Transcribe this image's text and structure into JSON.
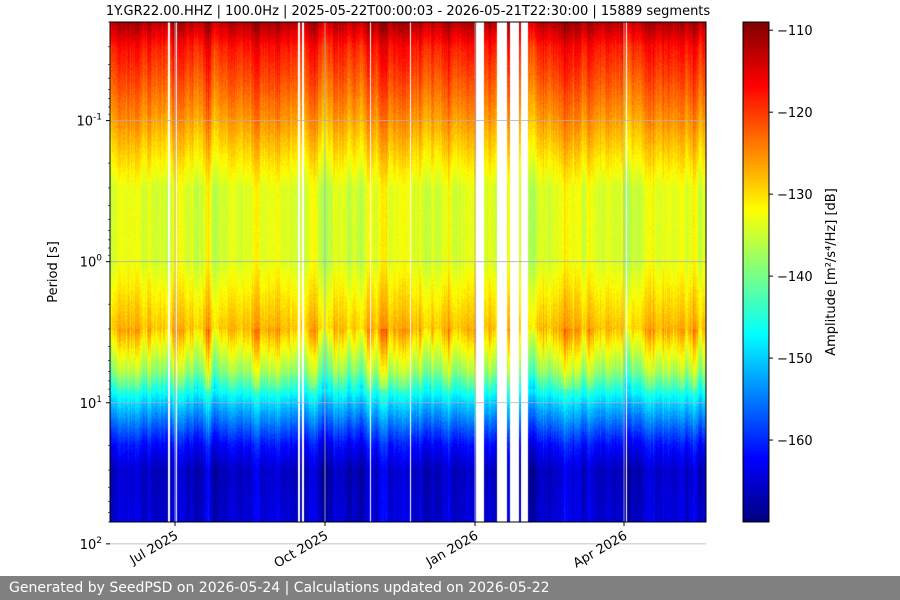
{
  "chart_data": {
    "type": "heatmap",
    "title": "1Y.GR22.00.HHZ | 100.0Hz | 2025-05-22T00:00:03 - 2026-05-21T22:30:00 | 15889 segments",
    "ylabel": "Period [s]",
    "colorbar_label": "Amplitude [m²/s⁴/Hz] [dB]",
    "y_scale": "log",
    "y_inverted": true,
    "ylim": [
      0.02,
      70
    ],
    "x_ticks": [
      "Jul 2025",
      "Oct 2025",
      "Jan 2026",
      "Apr 2026"
    ],
    "y_ticks": [
      "10^-1",
      "10^0",
      "10^1",
      "10^2"
    ],
    "colorbar_range": [
      -170,
      -109
    ],
    "colorbar_ticks": [
      -110,
      -120,
      -130,
      -140,
      -150,
      -160
    ],
    "colormap": "jet",
    "grid": true,
    "gaps": [
      "late Dec 2025",
      "mid Jan 2026",
      "late Jan 2026"
    ],
    "period_profile_db": {
      "period_s": [
        0.02,
        0.03,
        0.1,
        0.3,
        1,
        3,
        6,
        10,
        20,
        30,
        70
      ],
      "amplitude_db": [
        -112,
        -118,
        -126,
        -134,
        -134,
        -128,
        -138,
        -150,
        -162,
        -166,
        -165
      ]
    }
  },
  "footer": {
    "text": "Generated by SeedPSD on 2026-05-24 | Calculations updated on 2026-05-22"
  }
}
